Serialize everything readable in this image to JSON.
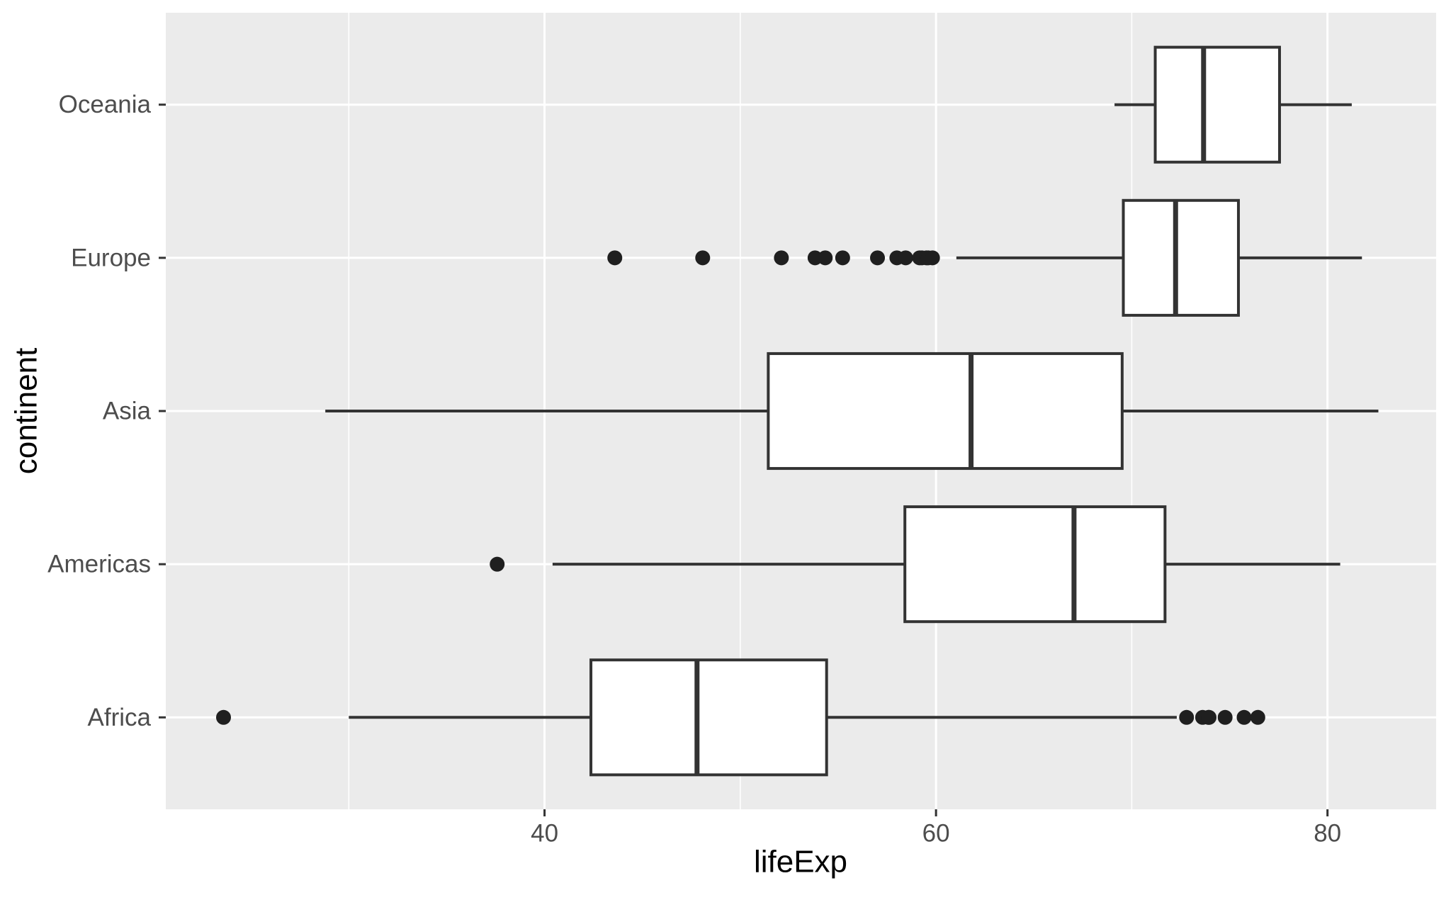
{
  "figure": {
    "background_color": "#FFFFFF",
    "panel_background_color": "#EBEBEB",
    "gridline_color": "#FFFFFF",
    "box_stroke_color": "#333333",
    "box_fill_color": "#FFFFFF",
    "outlier_color": "#1f1f1f",
    "tick_mark_color": "#333333",
    "tick_label_color": "#4D4D4D",
    "axis_title_color": "#000000"
  },
  "chart_data": {
    "type": "boxplot",
    "orientation": "horizontal",
    "title": "",
    "xlabel": "lifeExp",
    "ylabel": "continent",
    "xlim": [
      20.65,
      85.55
    ],
    "x_major_ticks": [
      40,
      60,
      80
    ],
    "x_major_tick_labels": [
      "40",
      "60",
      "80"
    ],
    "x_minor_gridlines": [
      30,
      50,
      70
    ],
    "grid": "on",
    "legend": "none",
    "categories_bottom_to_top": [
      "Africa",
      "Americas",
      "Asia",
      "Europe",
      "Oceania"
    ],
    "series": [
      {
        "continent": "Africa",
        "whisker_low": 30.0,
        "q1": 42.37,
        "median": 47.79,
        "q3": 54.41,
        "whisker_high": 72.3,
        "outliers": [
          23.6,
          72.8,
          73.62,
          73.92,
          73.95,
          74.77,
          75.74,
          76.44
        ]
      },
      {
        "continent": "Americas",
        "whisker_low": 40.41,
        "q1": 58.41,
        "median": 67.05,
        "q3": 71.7,
        "whisker_high": 80.65,
        "outliers": [
          37.58
        ]
      },
      {
        "continent": "Asia",
        "whisker_low": 28.8,
        "q1": 51.43,
        "median": 61.79,
        "q3": 69.51,
        "whisker_high": 82.6,
        "outliers": []
      },
      {
        "continent": "Europe",
        "whisker_low": 61.04,
        "q1": 69.57,
        "median": 72.24,
        "q3": 75.45,
        "whisker_high": 81.76,
        "outliers": [
          43.59,
          48.08,
          52.1,
          53.82,
          54.34,
          55.23,
          57.01,
          58.0,
          58.45,
          59.16,
          59.28,
          59.51,
          59.6,
          59.82
        ]
      },
      {
        "continent": "Oceania",
        "whisker_low": 69.12,
        "q1": 71.2,
        "median": 73.67,
        "q3": 77.55,
        "whisker_high": 81.24,
        "outliers": []
      }
    ]
  }
}
